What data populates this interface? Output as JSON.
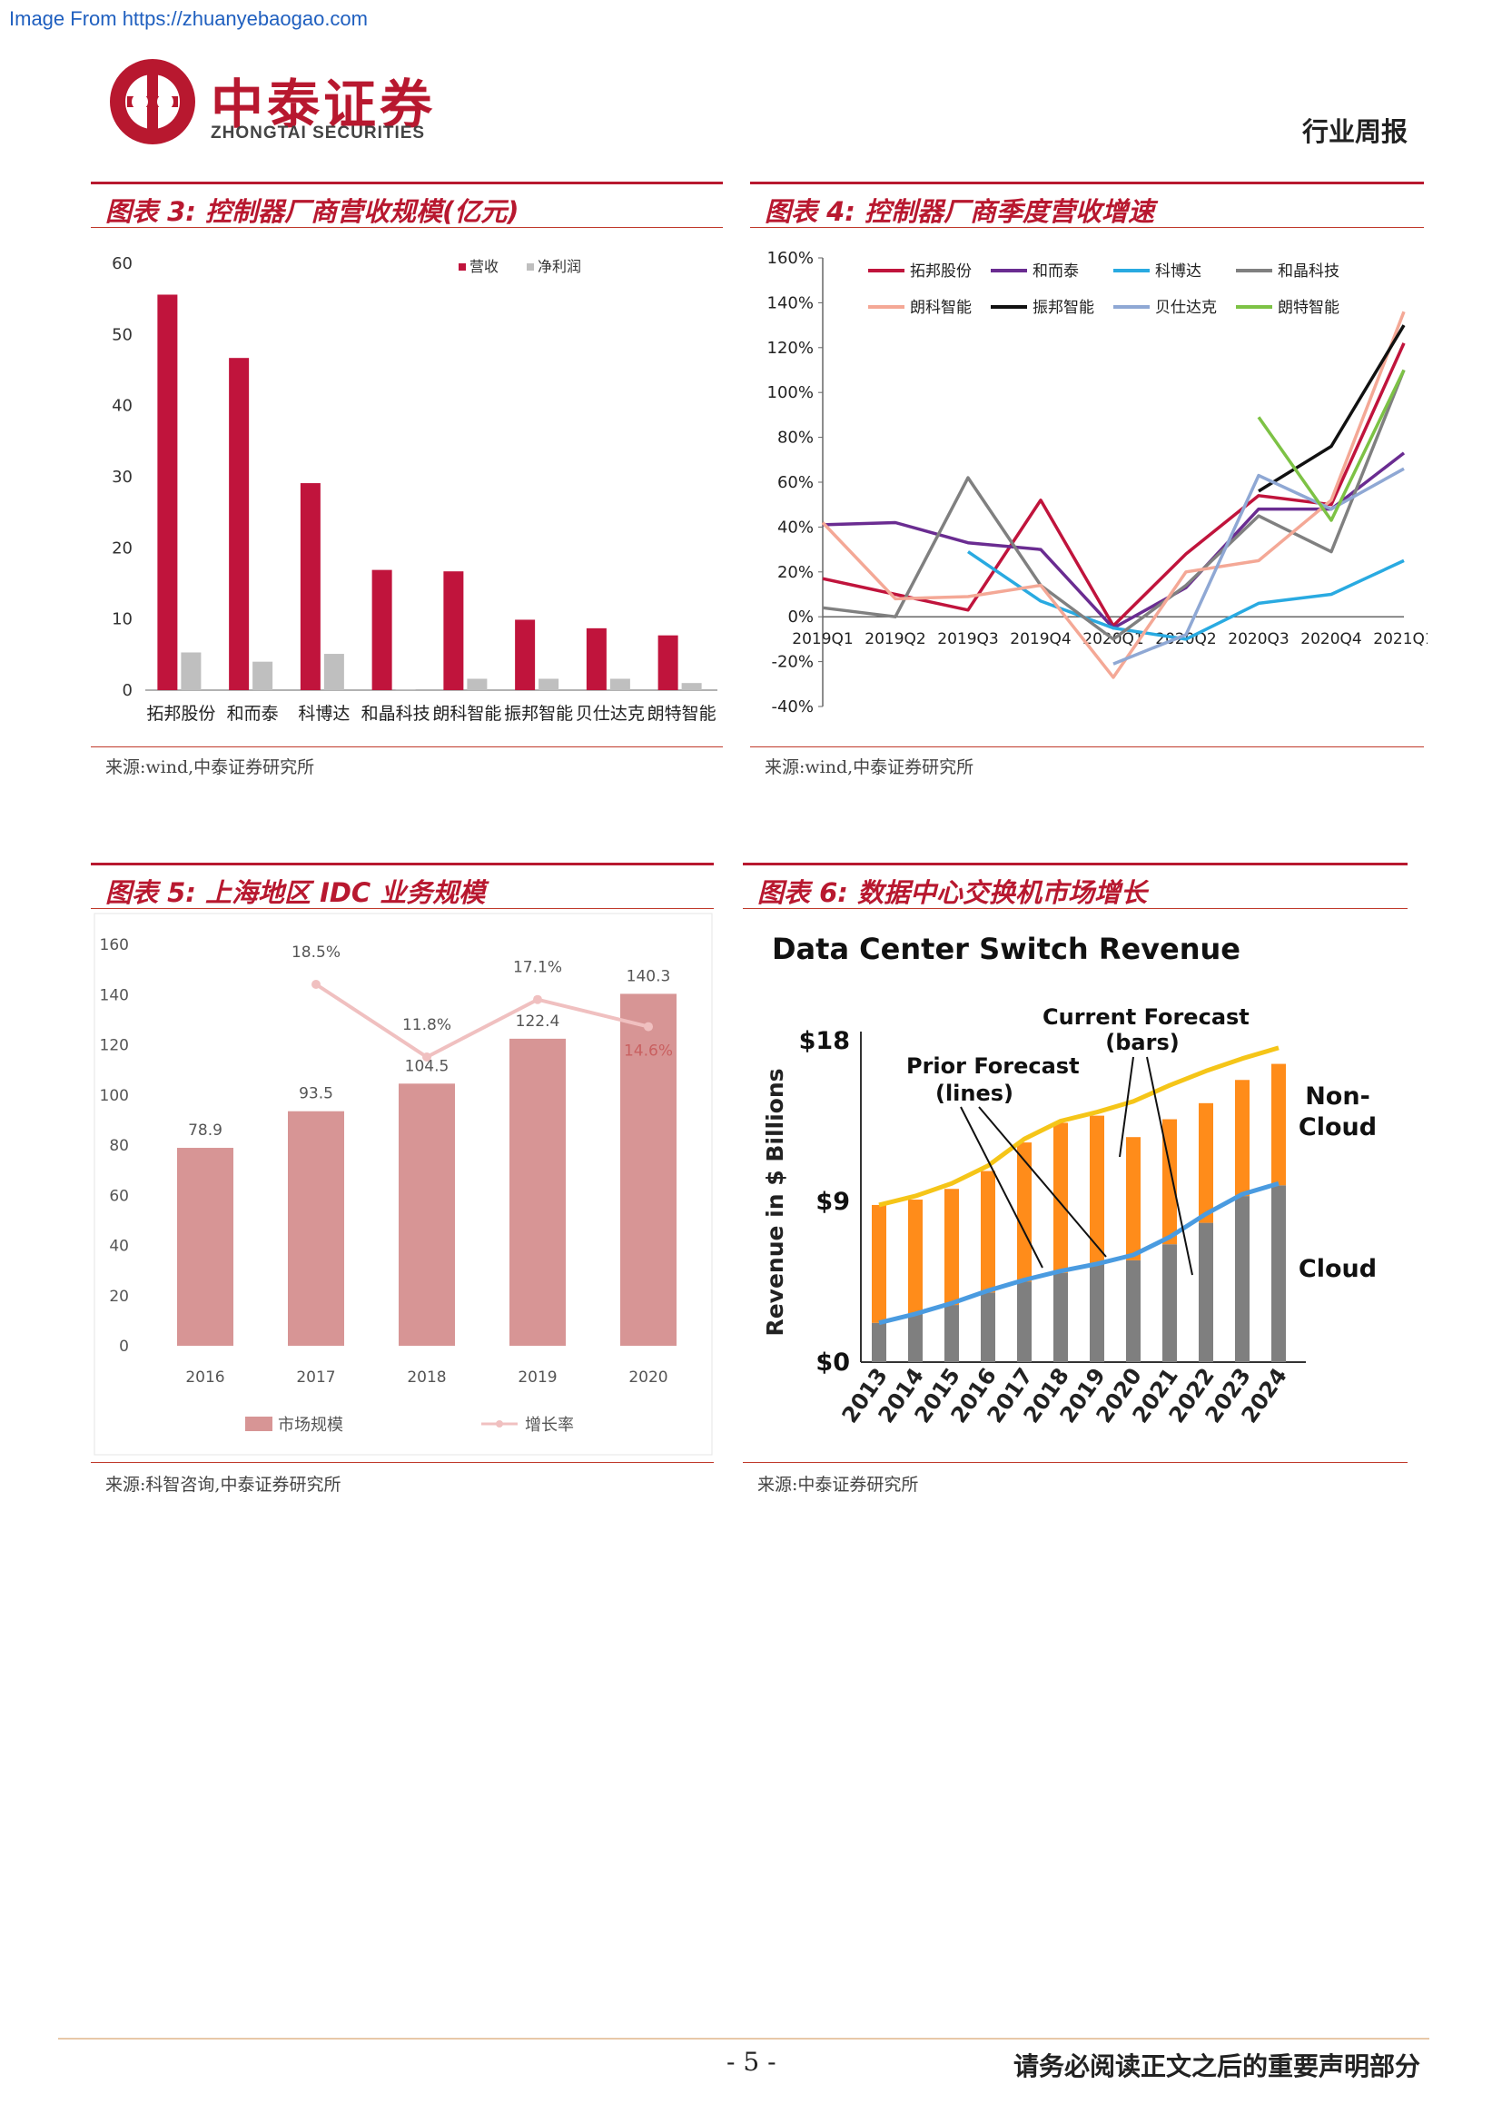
{
  "watermark_top": "Image From https://zhuanyebaogao.com",
  "logo": {
    "cn": "中泰证券",
    "en": "ZHONGTAI SECURITIES"
  },
  "report_type": "行业周报",
  "charts": {
    "c3": {
      "title": "图表 3:  控制器厂商营收规模(亿元)",
      "source": "来源:wind,中泰证券研究所"
    },
    "c4": {
      "title": "图表 4:  控制器厂商季度营收增速",
      "source": "来源:wind,中泰证券研究所"
    },
    "c5": {
      "title": "图表 5:  上海地区 IDC 业务规模",
      "source": "来源:科智咨询,中泰证券研究所"
    },
    "c6": {
      "title": "图表 6:  数据中心交换机市场增长",
      "source": "来源:中泰证券研究所"
    }
  },
  "chart_data": [
    {
      "type": "bar",
      "categories": [
        "拓邦股份",
        "和而泰",
        "科博达",
        "和晶科技",
        "朗科智能",
        "振邦智能",
        "贝仕达克",
        "朗特智能"
      ],
      "series": [
        {
          "name": "营收",
          "values": [
            55.6,
            46.7,
            29.1,
            16.9,
            16.7,
            9.9,
            8.7,
            7.7
          ],
          "color": "#c0143c"
        },
        {
          "name": "净利润",
          "values": [
            5.3,
            4.0,
            5.1,
            0.1,
            1.6,
            1.6,
            1.6,
            1.0
          ],
          "color": "#bfbfbf"
        }
      ],
      "ylim": [
        0,
        60
      ],
      "yticks": [
        "0",
        "10",
        "20",
        "30",
        "40",
        "50",
        "60"
      ],
      "legend": "top-right"
    },
    {
      "type": "line",
      "categories": [
        "2019Q1",
        "2019Q2",
        "2019Q3",
        "2019Q4",
        "2020Q1",
        "2020Q2",
        "2020Q3",
        "2020Q4",
        "2021Q1"
      ],
      "ylim": [
        -40,
        160
      ],
      "yticks": [
        "-40%",
        "-20%",
        "0%",
        "20%",
        "40%",
        "60%",
        "80%",
        "100%",
        "120%",
        "140%",
        "160%"
      ],
      "series": [
        {
          "name": "拓邦股份",
          "color": "#c0143c",
          "values": [
            17,
            10,
            3,
            52,
            -4,
            28,
            54,
            50,
            122
          ]
        },
        {
          "name": "和而泰",
          "color": "#6a2c91",
          "values": [
            41,
            42,
            33,
            30,
            -5,
            13,
            48,
            48,
            73
          ]
        },
        {
          "name": "科博达",
          "color": "#29aae1",
          "values": [
            null,
            null,
            29,
            7,
            -5,
            -10,
            6,
            10,
            25
          ]
        },
        {
          "name": "和晶科技",
          "color": "#808080",
          "values": [
            4,
            0,
            62,
            14,
            -10,
            14,
            45,
            29,
            110
          ]
        },
        {
          "name": "朗科智能",
          "color": "#f4a896",
          "values": [
            42,
            8,
            9,
            14,
            -27,
            20,
            25,
            52,
            136
          ]
        },
        {
          "name": "振邦智能",
          "color": "#111111",
          "values": [
            null,
            null,
            null,
            null,
            null,
            null,
            56,
            76,
            130
          ]
        },
        {
          "name": "贝仕达克",
          "color": "#8fa8d4",
          "values": [
            null,
            null,
            null,
            null,
            -21,
            -8,
            63,
            48,
            66
          ]
        },
        {
          "name": "朗特智能",
          "color": "#7dc245",
          "values": [
            null,
            null,
            null,
            null,
            null,
            null,
            89,
            43,
            110
          ]
        }
      ],
      "legend": "top"
    },
    {
      "type": "bar",
      "categories": [
        "2016",
        "2017",
        "2018",
        "2019",
        "2020"
      ],
      "series": [
        {
          "name": "市场规模",
          "values": [
            78.9,
            93.5,
            104.5,
            122.4,
            140.3
          ],
          "labels": [
            "78.9",
            "93.5",
            "104.5",
            "122.4",
            "140.3"
          ],
          "color": "#d79595"
        },
        {
          "name": "增长率",
          "values": [
            null,
            18.5,
            11.8,
            17.1,
            14.6
          ],
          "labels": [
            "",
            "18.5%",
            "11.8%",
            "17.1%",
            "14.6%"
          ],
          "color": "#f0c0c0"
        }
      ],
      "ylim": [
        0,
        160
      ],
      "yticks": [
        "0",
        "20",
        "40",
        "60",
        "80",
        "100",
        "120",
        "140",
        "160"
      ],
      "legend": "bottom"
    },
    {
      "type": "bar",
      "title": "Data Center Switch Revenue",
      "ylabel": "Revenue in $ Billions",
      "categories": [
        "2013",
        "2014",
        "2015",
        "2016",
        "2017",
        "2018",
        "2019",
        "2020",
        "2021",
        "2022",
        "2023",
        "2024"
      ],
      "yticks": [
        "$0",
        "$9",
        "$18"
      ],
      "ylim": [
        0,
        18
      ],
      "series": [
        {
          "name": "Cloud",
          "values": [
            2.2,
            2.7,
            3.2,
            3.9,
            4.5,
            5.0,
            5.5,
            5.7,
            6.6,
            7.8,
            9.3,
            9.9
          ],
          "color": "#7f7f7f"
        },
        {
          "name": "Non-Cloud",
          "values": [
            6.6,
            6.4,
            6.5,
            6.8,
            7.8,
            8.4,
            8.3,
            6.9,
            7.0,
            6.7,
            6.5,
            6.8
          ],
          "color": "#ff8c1a"
        }
      ],
      "lines": [
        {
          "name": "Prior Forecast (lines) total",
          "color": "#f5c518",
          "values": [
            8.8,
            9.3,
            10.0,
            11.0,
            12.5,
            13.5,
            14.0,
            14.6,
            15.5,
            16.3,
            17.0,
            17.6
          ]
        },
        {
          "name": "Prior Forecast (lines) cloud",
          "color": "#4a9be0",
          "values": [
            2.2,
            2.7,
            3.3,
            4.0,
            4.6,
            5.1,
            5.5,
            6.0,
            7.0,
            8.3,
            9.4,
            10.0
          ]
        }
      ],
      "annotations": {
        "current": "Current Forecast",
        "current_sub": "(bars)",
        "prior": "Prior Forecast",
        "prior_sub": "(lines)",
        "noncloud1": "Non-",
        "noncloud2": "Cloud",
        "cloud": "Cloud"
      }
    }
  ],
  "footer": {
    "page": "- 5 -",
    "note": "请务必阅读正文之后的重要声明部分"
  }
}
